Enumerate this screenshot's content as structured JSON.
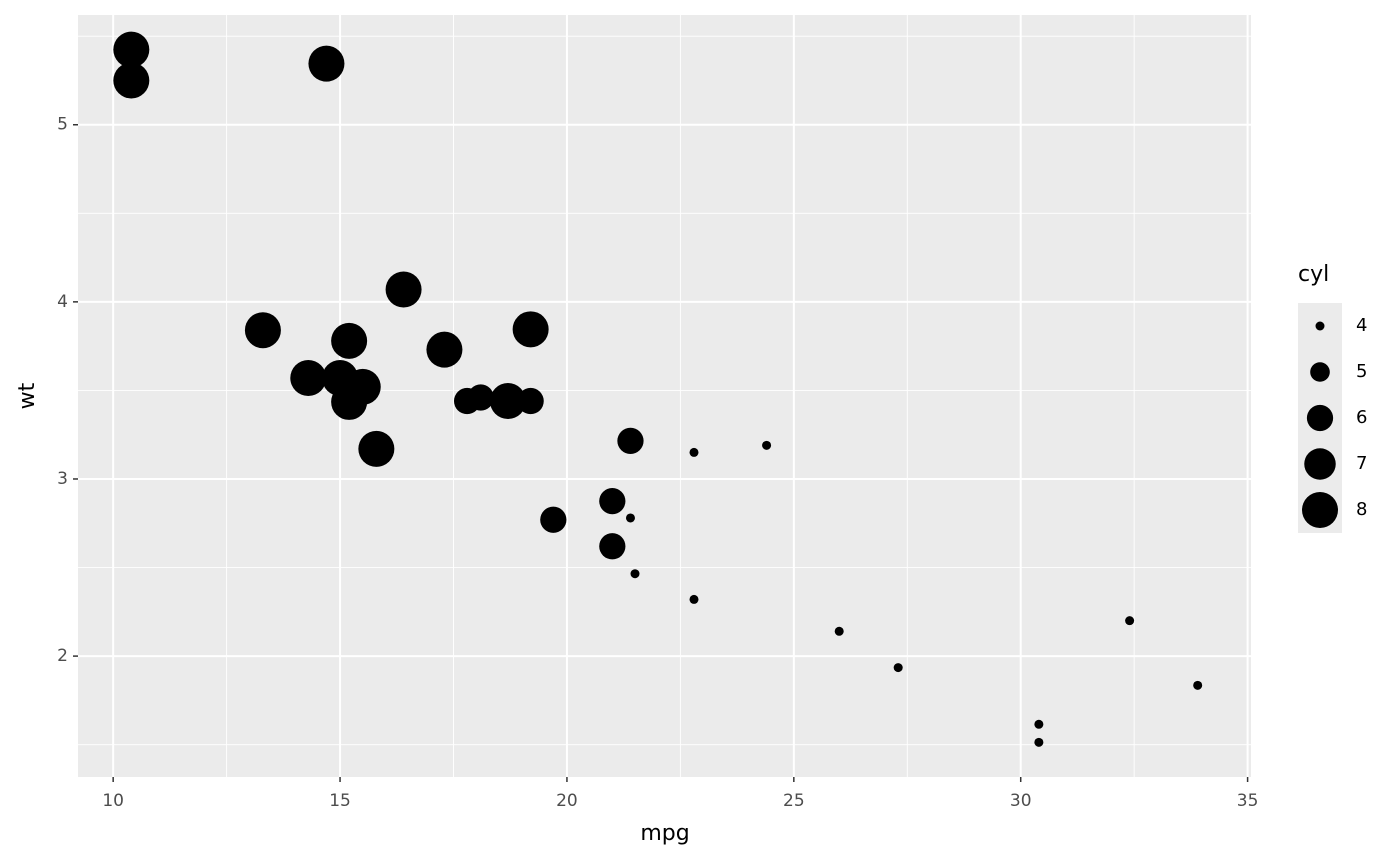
{
  "chart_data": {
    "type": "scatter",
    "x_label": "mpg",
    "y_label": "wt",
    "x": [
      21.0,
      21.0,
      22.8,
      21.4,
      18.7,
      18.1,
      14.3,
      24.4,
      22.8,
      19.2,
      17.8,
      16.4,
      17.3,
      15.2,
      10.4,
      10.4,
      14.7,
      32.4,
      30.4,
      33.9,
      21.5,
      15.5,
      15.2,
      13.3,
      19.2,
      27.3,
      26.0,
      30.4,
      15.8,
      19.7,
      15.0,
      21.4
    ],
    "y": [
      2.62,
      2.875,
      2.32,
      3.215,
      3.44,
      3.46,
      3.57,
      3.19,
      3.15,
      3.44,
      3.44,
      4.07,
      3.73,
      3.78,
      5.25,
      5.424,
      5.345,
      2.2,
      1.615,
      1.835,
      2.465,
      3.52,
      3.435,
      3.84,
      3.845,
      1.935,
      2.14,
      1.513,
      3.17,
      2.77,
      3.57,
      2.78
    ],
    "size": [
      6,
      6,
      4,
      6,
      8,
      6,
      8,
      4,
      4,
      6,
      6,
      8,
      8,
      8,
      8,
      8,
      8,
      4,
      4,
      4,
      4,
      8,
      8,
      8,
      8,
      4,
      4,
      4,
      8,
      6,
      8,
      4
    ],
    "color": "#000000",
    "xlim": [
      9.225,
      35.075
    ],
    "ylim": [
      1.31745,
      5.61955
    ],
    "xticks": [
      10,
      15,
      20,
      25,
      30,
      35
    ],
    "yticks": [
      2,
      3,
      4,
      5
    ],
    "x_minor_ticks": [
      12.5,
      17.5,
      22.5,
      27.5,
      32.5
    ],
    "y_minor_ticks": [
      1.5,
      2.5,
      3.5,
      4.5,
      5.5
    ],
    "grid": true,
    "size_legend": {
      "title": "cyl",
      "breaks": [
        4,
        5,
        6,
        7,
        8
      ]
    }
  }
}
